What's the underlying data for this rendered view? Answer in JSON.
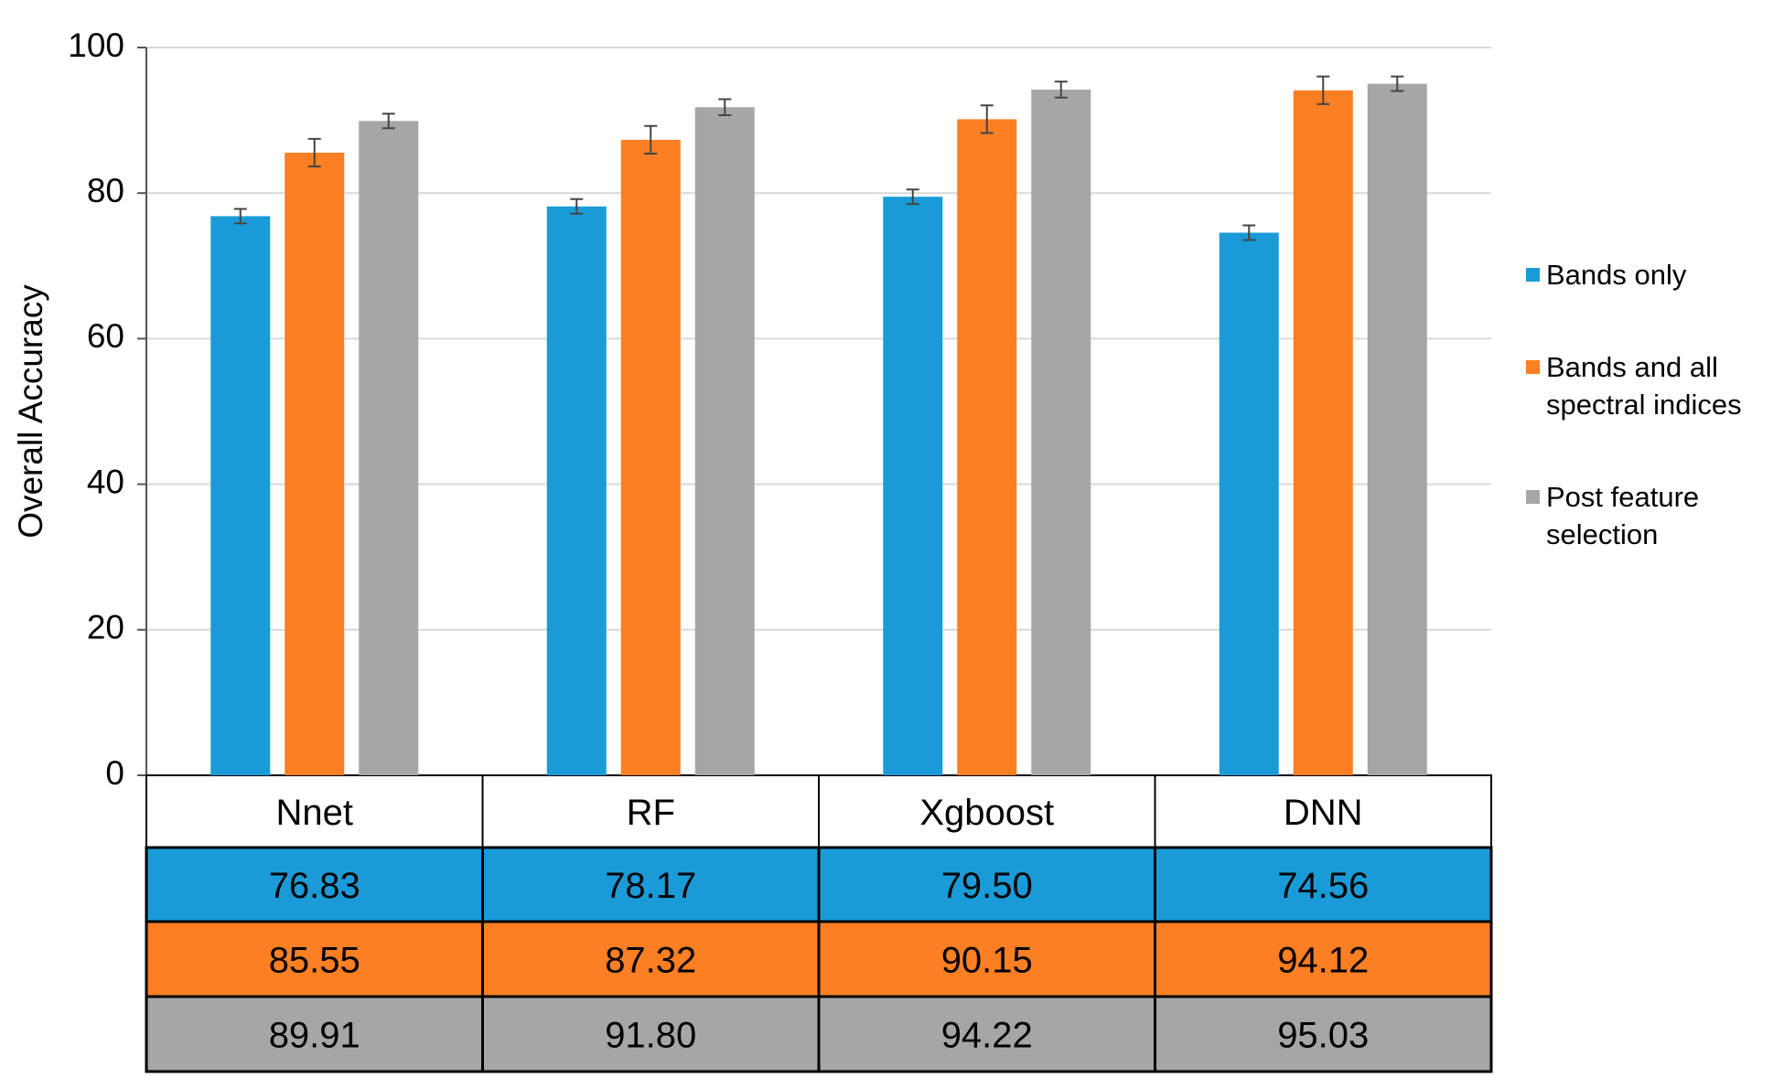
{
  "chart_data": {
    "type": "bar",
    "y_label": "Overall Accuracy",
    "categories": [
      "Nnet",
      "RF",
      "Xgboost",
      "DNN"
    ],
    "series": [
      {
        "name": "Bands only",
        "color": "#1a9bd7",
        "values": [
          76.83,
          78.17,
          79.5,
          74.56
        ],
        "value_labels": [
          "76.83",
          "78.17",
          "79.50",
          "74.56"
        ],
        "errors": [
          1.0,
          1.0,
          1.0,
          1.0
        ]
      },
      {
        "name": "Bands and all spectral indices",
        "color": "#fd7f23",
        "values": [
          85.55,
          87.32,
          90.15,
          94.12
        ],
        "value_labels": [
          "85.55",
          "87.32",
          "90.15",
          "94.12"
        ],
        "errors": [
          1.9,
          1.9,
          1.9,
          1.9
        ]
      },
      {
        "name": "Post feature selection",
        "color": "#a6a6a6",
        "values": [
          89.91,
          91.8,
          94.22,
          95.03
        ],
        "value_labels": [
          "89.91",
          "91.80",
          "94.22",
          "95.03"
        ],
        "errors": [
          1.0,
          1.1,
          1.1,
          1.0
        ]
      }
    ],
    "ylim": [
      0,
      100
    ],
    "yticks": [
      0,
      20,
      40,
      60,
      80,
      100
    ],
    "grid": true,
    "legend": "right"
  }
}
